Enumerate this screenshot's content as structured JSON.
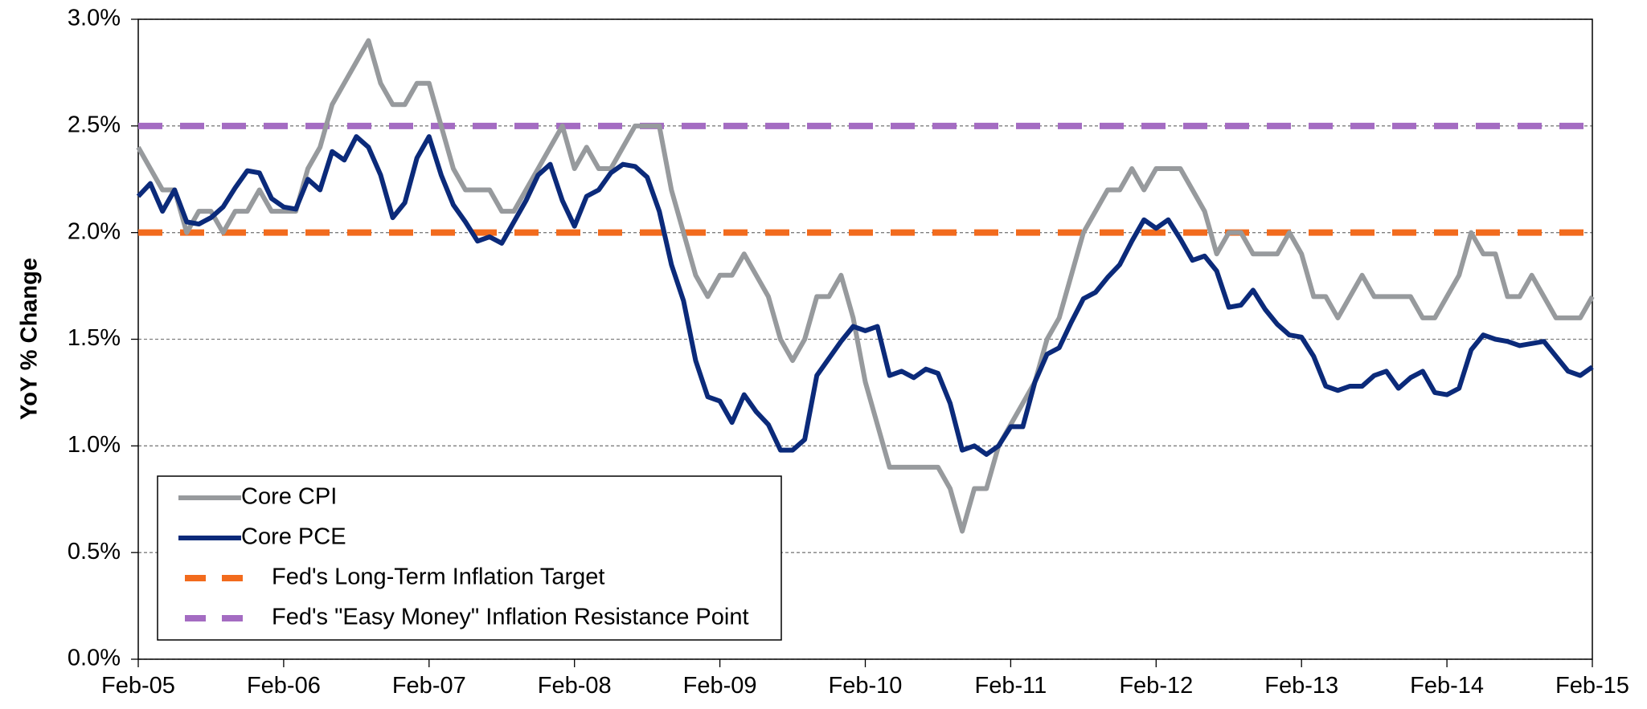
{
  "chart_data": {
    "type": "line",
    "y_label": "YoY % Change",
    "categories": [
      "Feb-05",
      null,
      null,
      null,
      null,
      null,
      null,
      null,
      null,
      null,
      null,
      null,
      "Feb-06",
      null,
      null,
      null,
      null,
      null,
      null,
      null,
      null,
      null,
      null,
      null,
      "Feb-07",
      null,
      null,
      null,
      null,
      null,
      null,
      null,
      null,
      null,
      null,
      null,
      "Feb-08",
      null,
      null,
      null,
      null,
      null,
      null,
      null,
      null,
      null,
      null,
      null,
      "Feb-09",
      null,
      null,
      null,
      null,
      null,
      null,
      null,
      null,
      null,
      null,
      null,
      "Feb-10",
      null,
      null,
      null,
      null,
      null,
      null,
      null,
      null,
      null,
      null,
      null,
      "Feb-11",
      null,
      null,
      null,
      null,
      null,
      null,
      null,
      null,
      null,
      null,
      null,
      "Feb-12",
      null,
      null,
      null,
      null,
      null,
      null,
      null,
      null,
      null,
      null,
      null,
      "Feb-13",
      null,
      null,
      null,
      null,
      null,
      null,
      null,
      null,
      null,
      null,
      null,
      "Feb-14",
      null,
      null,
      null,
      null,
      null,
      null,
      null,
      null,
      null,
      null,
      null,
      "Feb-15"
    ],
    "series": [
      {
        "name": "Core CPI",
        "color": "#979a9d",
        "values": [
          2.4,
          2.3,
          2.2,
          2.2,
          2.0,
          2.1,
          2.1,
          2.0,
          2.1,
          2.1,
          2.2,
          2.1,
          2.1,
          2.1,
          2.3,
          2.4,
          2.6,
          2.7,
          2.8,
          2.9,
          2.7,
          2.6,
          2.6,
          2.7,
          2.7,
          2.5,
          2.3,
          2.2,
          2.2,
          2.2,
          2.1,
          2.1,
          2.2,
          2.3,
          2.4,
          2.5,
          2.3,
          2.4,
          2.3,
          2.3,
          2.4,
          2.5,
          2.5,
          2.5,
          2.2,
          2.0,
          1.8,
          1.7,
          1.8,
          1.8,
          1.9,
          1.8,
          1.7,
          1.5,
          1.4,
          1.5,
          1.7,
          1.7,
          1.8,
          1.6,
          1.3,
          1.1,
          0.9,
          0.9,
          0.9,
          0.9,
          0.9,
          0.8,
          0.6,
          0.8,
          0.8,
          1.0,
          1.1,
          1.2,
          1.3,
          1.5,
          1.6,
          1.8,
          2.0,
          2.1,
          2.2,
          2.2,
          2.3,
          2.2,
          2.3,
          2.3,
          2.3,
          2.2,
          2.1,
          1.9,
          2.0,
          2.0,
          1.9,
          1.9,
          1.9,
          2.0,
          1.9,
          1.7,
          1.7,
          1.6,
          1.7,
          1.8,
          1.7,
          1.7,
          1.7,
          1.7,
          1.6,
          1.6,
          1.7,
          1.8,
          2.0,
          1.9,
          1.9,
          1.7,
          1.7,
          1.8,
          1.7,
          1.6,
          1.6,
          1.6,
          1.7
        ]
      },
      {
        "name": "Core PCE",
        "color": "#0b2a7a",
        "values": [
          2.17,
          2.23,
          2.1,
          2.2,
          2.05,
          2.04,
          2.07,
          2.12,
          2.21,
          2.29,
          2.28,
          2.16,
          2.12,
          2.11,
          2.25,
          2.2,
          2.38,
          2.34,
          2.45,
          2.4,
          2.27,
          2.07,
          2.14,
          2.35,
          2.45,
          2.27,
          2.13,
          2.05,
          1.96,
          1.98,
          1.95,
          2.05,
          2.15,
          2.27,
          2.32,
          2.15,
          2.03,
          2.17,
          2.2,
          2.28,
          2.32,
          2.31,
          2.26,
          2.1,
          1.85,
          1.68,
          1.4,
          1.23,
          1.21,
          1.11,
          1.24,
          1.16,
          1.1,
          0.98,
          0.98,
          1.03,
          1.33,
          1.41,
          1.49,
          1.56,
          1.54,
          1.56,
          1.33,
          1.35,
          1.32,
          1.36,
          1.34,
          1.2,
          0.98,
          1.0,
          0.96,
          1.0,
          1.09,
          1.09,
          1.3,
          1.43,
          1.46,
          1.58,
          1.69,
          1.72,
          1.79,
          1.85,
          1.96,
          2.06,
          2.02,
          2.06,
          1.97,
          1.87,
          1.89,
          1.82,
          1.65,
          1.66,
          1.73,
          1.64,
          1.57,
          1.52,
          1.51,
          1.42,
          1.28,
          1.26,
          1.28,
          1.28,
          1.33,
          1.35,
          1.27,
          1.32,
          1.35,
          1.25,
          1.24,
          1.27,
          1.45,
          1.52,
          1.5,
          1.49,
          1.47,
          1.48,
          1.49,
          1.42,
          1.35,
          1.33,
          1.37
        ]
      }
    ],
    "reference_lines": [
      {
        "name": "Fed's Long-Term Inflation Target",
        "color": "#f26b1d",
        "value": 2.0
      },
      {
        "name": "Fed's \"Easy Money\" Inflation Resistance Point",
        "color": "#a46cc2",
        "value": 2.5
      }
    ],
    "ylim": [
      0,
      3
    ],
    "yticks": [
      {
        "value": 0,
        "label": "0.0%"
      },
      {
        "value": 0.5,
        "label": "0.5%"
      },
      {
        "value": 1,
        "label": "1.0%"
      },
      {
        "value": 1.5,
        "label": "1.5%"
      },
      {
        "value": 2,
        "label": "2.0%"
      },
      {
        "value": 2.5,
        "label": "2.5%"
      },
      {
        "value": 3,
        "label": "3.0%"
      }
    ],
    "grid": true,
    "legend": "lower left"
  }
}
